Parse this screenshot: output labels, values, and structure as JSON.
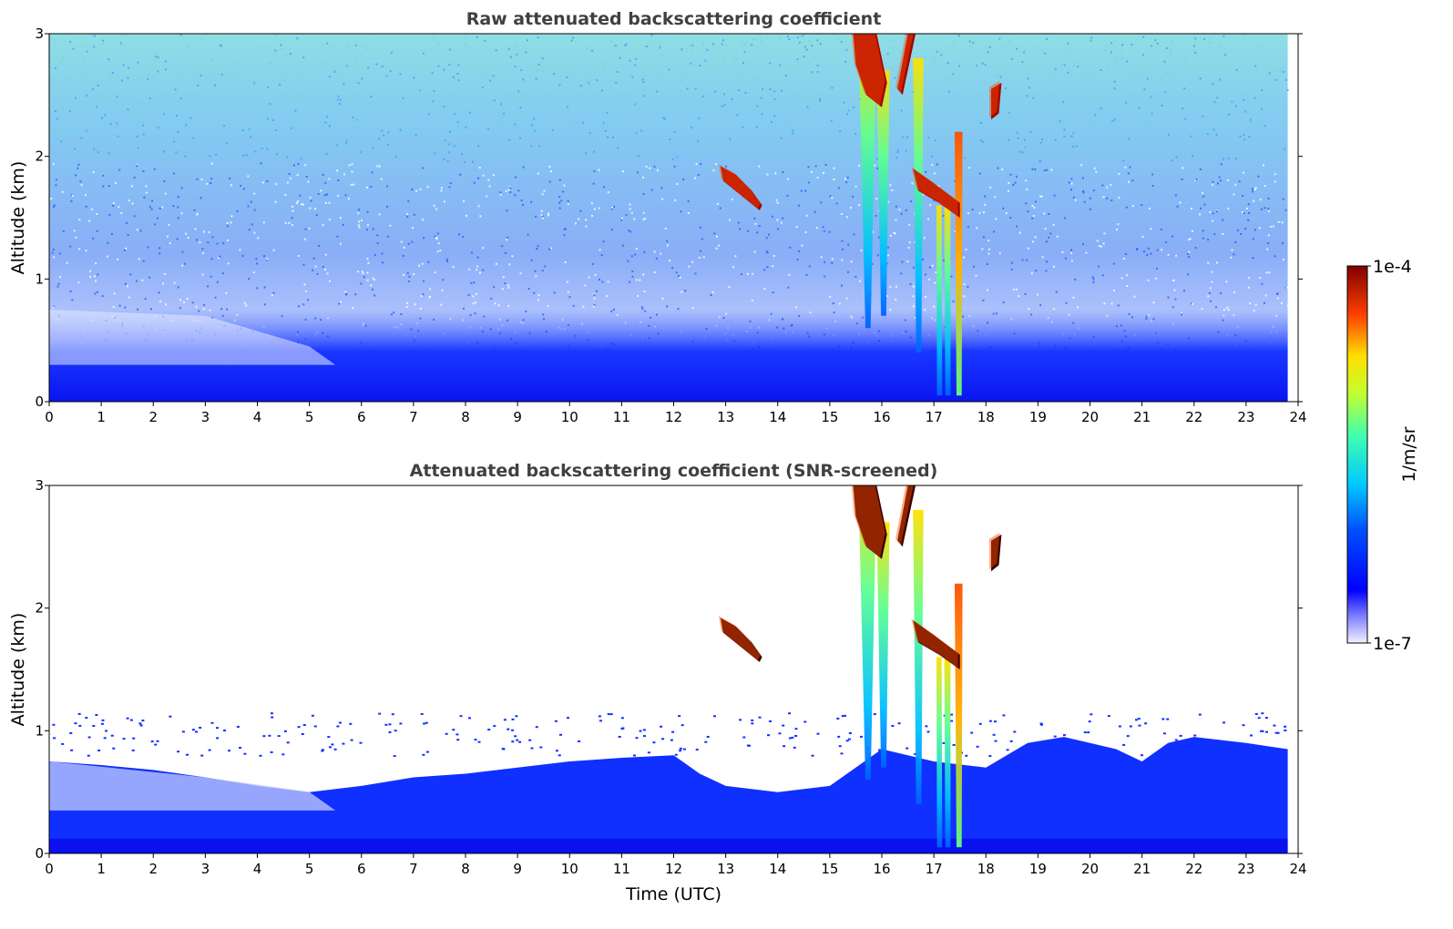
{
  "chart_data": [
    {
      "type": "heatmap",
      "title": "Raw attenuated backscattering coefficient",
      "xlabel": "",
      "ylabel": "Altitude (km)",
      "xlim": [
        0,
        24
      ],
      "ylim": [
        0,
        3
      ],
      "x_ticks": [
        0,
        1,
        2,
        3,
        4,
        5,
        6,
        7,
        8,
        9,
        10,
        11,
        12,
        13,
        14,
        15,
        16,
        17,
        18,
        19,
        20,
        21,
        22,
        23,
        24
      ],
      "y_ticks": [
        0,
        1,
        2,
        3
      ],
      "data_x_end": 23.8,
      "screened": false,
      "features": [
        {
          "desc": "boundary layer aerosol",
          "x": [
            0,
            23.8
          ],
          "y": [
            0,
            0.7
          ]
        },
        {
          "desc": "cloud",
          "x": [
            12.8,
            13.7
          ],
          "y": [
            1.6,
            1.9
          ]
        },
        {
          "desc": "cloud",
          "x": [
            15.5,
            16.6
          ],
          "y": [
            2.3,
            3.0
          ]
        },
        {
          "desc": "cloud",
          "x": [
            16.6,
            17.5
          ],
          "y": [
            1.5,
            1.9
          ]
        },
        {
          "desc": "cloud",
          "x": [
            18.1,
            18.3
          ],
          "y": [
            2.3,
            2.6
          ]
        },
        {
          "desc": "precipitation fall streaks",
          "x": [
            15.6,
            17.6
          ],
          "y": [
            0,
            3.0
          ]
        }
      ]
    },
    {
      "type": "heatmap",
      "title": "Attenuated backscattering coefficient (SNR-screened)",
      "xlabel": "Time (UTC)",
      "ylabel": "Altitude (km)",
      "xlim": [
        0,
        24
      ],
      "ylim": [
        0,
        3
      ],
      "x_ticks": [
        0,
        1,
        2,
        3,
        4,
        5,
        6,
        7,
        8,
        9,
        10,
        11,
        12,
        13,
        14,
        15,
        16,
        17,
        18,
        19,
        20,
        21,
        22,
        23,
        24
      ],
      "y_ticks": [
        0,
        1,
        2,
        3
      ],
      "data_x_end": 23.8,
      "screened": true,
      "features": [
        {
          "desc": "boundary layer aerosol",
          "x": [
            0,
            23.8
          ],
          "y": [
            0,
            1.0
          ]
        },
        {
          "desc": "cloud",
          "x": [
            12.8,
            13.7
          ],
          "y": [
            1.6,
            1.9
          ]
        },
        {
          "desc": "cloud",
          "x": [
            15.5,
            16.6
          ],
          "y": [
            2.3,
            3.0
          ]
        },
        {
          "desc": "cloud",
          "x": [
            16.6,
            17.5
          ],
          "y": [
            1.5,
            1.9
          ]
        },
        {
          "desc": "cloud",
          "x": [
            18.1,
            18.3
          ],
          "y": [
            2.3,
            2.6
          ]
        },
        {
          "desc": "precipitation fall streaks",
          "x": [
            15.6,
            17.6
          ],
          "y": [
            0,
            3.0
          ]
        }
      ]
    }
  ],
  "colorbar": {
    "max_label": "1e-4",
    "min_label": "1e-7",
    "label": "1/m/sr",
    "colormap": "jet"
  }
}
